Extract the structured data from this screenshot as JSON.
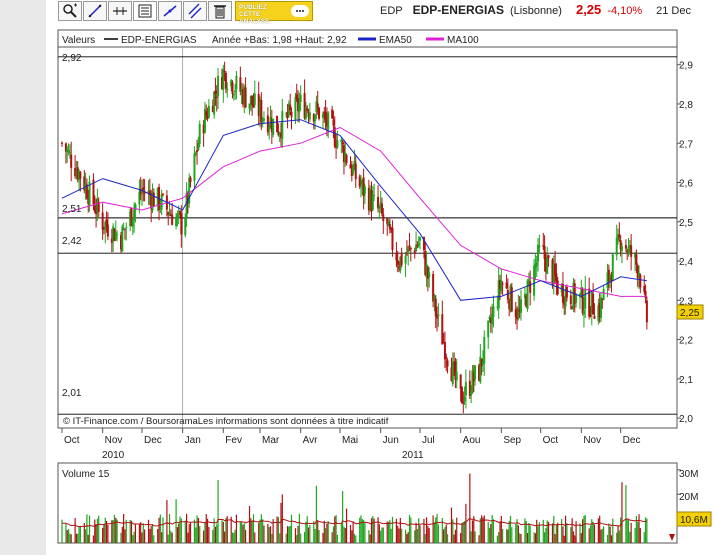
{
  "toolbar": {
    "tools": [
      "zoom-icon",
      "draw-line-icon",
      "horizontal-line-icon",
      "indicator-list-icon",
      "trend-line-icon",
      "channel-icon",
      "delete-icon"
    ],
    "promo_line1": "PUBLIEZ",
    "promo_line2": "CETTE",
    "promo_line3": "ANALYSE"
  },
  "quote": {
    "symbol": "EDP",
    "name": "EDP-ENERGIAS",
    "exchange": "(Lisbonne)",
    "price": "2,25",
    "change": "-4,10%",
    "date": "21 Dec"
  },
  "legend": {
    "series_label": "Valeurs",
    "instrument": "EDP-ENERGIAS",
    "range_text": "Année +Bas: 1,98 +Haut: 2,92",
    "ema_label": "EMA50",
    "ma_label": "MA100"
  },
  "levels": {
    "l292": "2,92",
    "l251": "2,51",
    "l242": "2,42",
    "l201": "2,01"
  },
  "current_price_tag": "2,25",
  "credit": "© IT-Finance.com / BoursoramaLes informations sont données à titre indicatif",
  "months": [
    "Oct",
    "Nov",
    "Dec",
    "Jan",
    "Fev",
    "Mar",
    "Avr",
    "Mai",
    "Jun",
    "Jul",
    "Aou",
    "Sep",
    "Oct",
    "Nov",
    "Dec"
  ],
  "years": [
    "2010",
    "2011"
  ],
  "volume": {
    "label": "Volume 15",
    "ticks": [
      "30M",
      "20M",
      "10M"
    ],
    "current_tag": "10,6M"
  },
  "colors": {
    "up": "#1fa51f",
    "down": "#b01010",
    "ema": "#1c23c8",
    "ma": "#e020d8",
    "price_tag": "#f4d000",
    "level_line": "#000000"
  },
  "chart_data": {
    "type": "candlestick",
    "title": "EDP-ENERGIAS",
    "ylim": [
      1.98,
      2.94
    ],
    "yticks": [
      2.0,
      2.1,
      2.2,
      2.3,
      2.4,
      2.5,
      2.6,
      2.7,
      2.8,
      2.9
    ],
    "horizontal_levels": [
      2.92,
      2.51,
      2.42,
      2.01
    ],
    "price_close_path": {
      "x": [
        "2010-10-01",
        "2010-10-15",
        "2010-11-01",
        "2010-11-15",
        "2010-12-01",
        "2010-12-15",
        "2011-01-01",
        "2011-01-15",
        "2011-02-01",
        "2011-02-15",
        "2011-03-01",
        "2011-03-15",
        "2011-04-01",
        "2011-04-15",
        "2011-05-01",
        "2011-05-15",
        "2011-06-01",
        "2011-06-15",
        "2011-07-01",
        "2011-07-15",
        "2011-08-01",
        "2011-08-15",
        "2011-09-01",
        "2011-09-15",
        "2011-10-01",
        "2011-10-15",
        "2011-11-01",
        "2011-11-15",
        "2011-12-01",
        "2011-12-15",
        "2011-12-21"
      ],
      "y": [
        2.7,
        2.62,
        2.5,
        2.46,
        2.58,
        2.55,
        2.49,
        2.74,
        2.88,
        2.83,
        2.78,
        2.74,
        2.8,
        2.78,
        2.7,
        2.6,
        2.52,
        2.4,
        2.45,
        2.24,
        2.05,
        2.12,
        2.35,
        2.26,
        2.43,
        2.33,
        2.3,
        2.28,
        2.46,
        2.38,
        2.25
      ]
    },
    "ema50": {
      "name": "EMA50",
      "x": [
        "2010-10-01",
        "2010-11-01",
        "2010-12-01",
        "2011-01-01",
        "2011-02-01",
        "2011-03-01",
        "2011-04-01",
        "2011-05-01",
        "2011-06-01",
        "2011-07-01",
        "2011-08-01",
        "2011-09-01",
        "2011-10-01",
        "2011-11-01",
        "2011-12-01",
        "2011-12-21"
      ],
      "y": [
        2.56,
        2.61,
        2.58,
        2.53,
        2.72,
        2.75,
        2.76,
        2.72,
        2.59,
        2.47,
        2.3,
        2.31,
        2.35,
        2.31,
        2.36,
        2.35
      ]
    },
    "ma100": {
      "name": "MA100",
      "x": [
        "2010-10-01",
        "2010-11-01",
        "2010-12-01",
        "2011-01-01",
        "2011-02-01",
        "2011-03-01",
        "2011-04-01",
        "2011-05-01",
        "2011-06-01",
        "2011-07-01",
        "2011-08-01",
        "2011-09-01",
        "2011-10-01",
        "2011-11-01",
        "2011-12-01",
        "2011-12-21"
      ],
      "y": [
        2.52,
        2.55,
        2.53,
        2.56,
        2.64,
        2.68,
        2.7,
        2.74,
        2.68,
        2.56,
        2.44,
        2.38,
        2.35,
        2.33,
        2.31,
        2.31
      ]
    },
    "volume_ylim": [
      0,
      32
    ],
    "volume_unit": "M"
  }
}
